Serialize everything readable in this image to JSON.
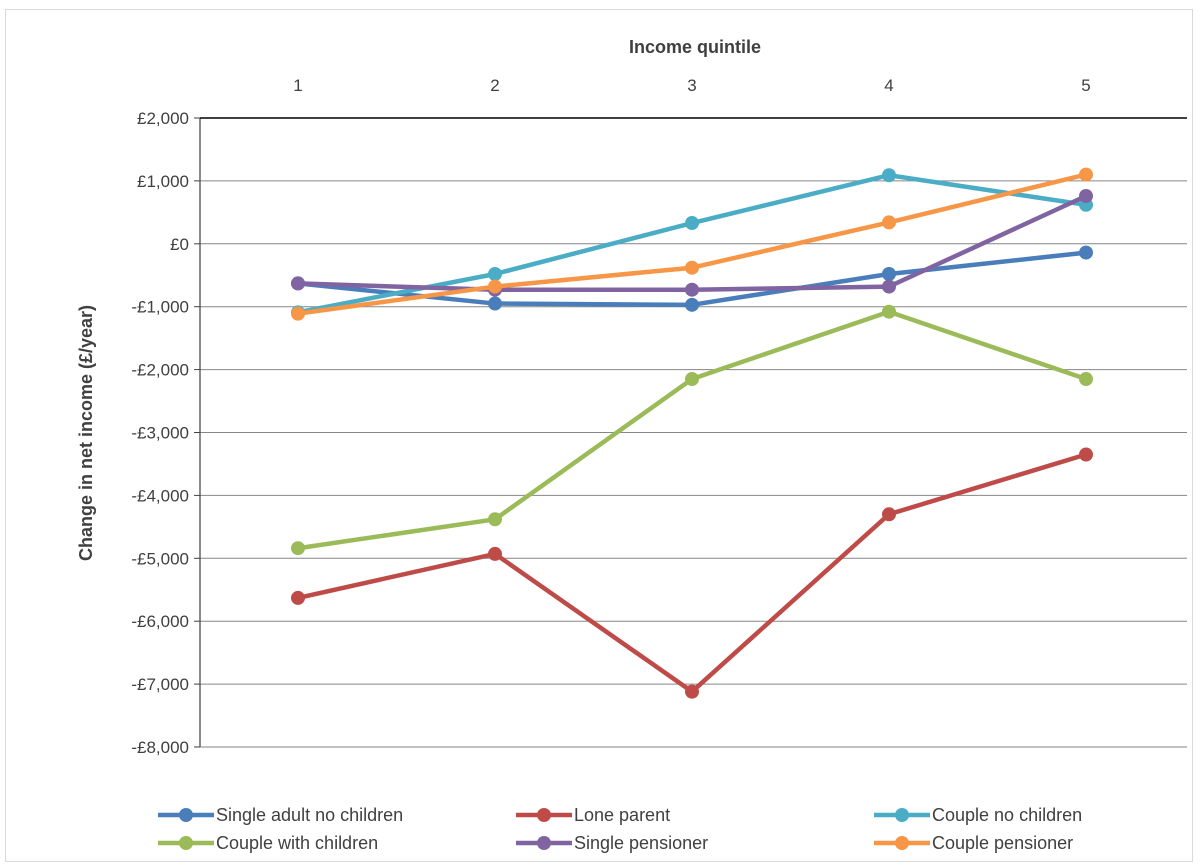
{
  "chart_data": {
    "type": "line",
    "title": "",
    "xlabel": "Income quintile",
    "ylabel": "Change in net income (£/year)",
    "x": [
      1,
      2,
      3,
      4,
      5
    ],
    "x_tick_labels": [
      "1",
      "2",
      "3",
      "4",
      "5"
    ],
    "ylim": [
      -8000,
      2000
    ],
    "y_ticks": [
      2000,
      1000,
      0,
      -1000,
      -2000,
      -3000,
      -4000,
      -5000,
      -6000,
      -7000,
      -8000
    ],
    "y_tick_labels": [
      "£2,000",
      "£1,000",
      "£0",
      "-£1,000",
      "-£2,000",
      "-£3,000",
      "-£4,000",
      "-£5,000",
      "-£6,000",
      "-£7,000",
      "-£8,000"
    ],
    "x_axis_position": "top",
    "grid": true,
    "legend_position": "bottom",
    "series": [
      {
        "name": "Single adult no children",
        "color": "#4a7ebb",
        "values": [
          -630,
          -950,
          -970,
          -480,
          -140
        ]
      },
      {
        "name": "Lone parent",
        "color": "#be4b48",
        "values": [
          -5630,
          -4930,
          -7120,
          -4300,
          -3350
        ]
      },
      {
        "name": "Couple no children",
        "color": "#4bacc6",
        "values": [
          -1090,
          -480,
          330,
          1090,
          620
        ]
      },
      {
        "name": "Couple with children",
        "color": "#9bbb59",
        "values": [
          -4840,
          -4380,
          -2150,
          -1080,
          -2150
        ]
      },
      {
        "name": "Single pensioner",
        "color": "#8064a2",
        "values": [
          -630,
          -730,
          -730,
          -680,
          760
        ]
      },
      {
        "name": "Couple pensioner",
        "color": "#f79646",
        "values": [
          -1110,
          -680,
          -380,
          340,
          1100
        ]
      }
    ]
  }
}
